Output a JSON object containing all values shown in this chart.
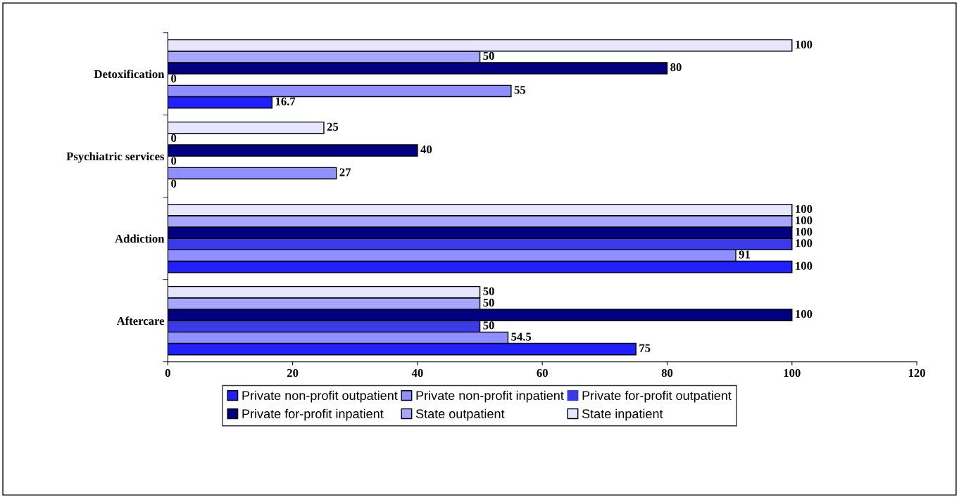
{
  "chart_data": {
    "type": "bar",
    "orientation": "horizontal",
    "categories": [
      "Detoxification",
      "Psychiatric services",
      "Addiction",
      "Aftercare"
    ],
    "series": [
      {
        "name": "Private non-profit outpatient",
        "color": "#1f1fff",
        "values": [
          16.7,
          0,
          100,
          75
        ]
      },
      {
        "name": "Private non-profit inpatient",
        "color": "#8f8fff",
        "values": [
          55,
          27,
          91,
          54.5
        ]
      },
      {
        "name": "Private for-profit outpatient",
        "color": "#3a3ae6",
        "values": [
          0,
          0,
          100,
          50
        ]
      },
      {
        "name": "Private for-profit inpatient",
        "color": "#000080",
        "values": [
          80,
          40,
          100,
          100
        ]
      },
      {
        "name": "State outpatient",
        "color": "#a6a6ff",
        "values": [
          50,
          0,
          100,
          50
        ]
      },
      {
        "name": "State inpatient",
        "color": "#e6e6ff",
        "values": [
          100,
          25,
          100,
          50
        ]
      }
    ],
    "xlim": [
      0,
      120
    ],
    "xticks": [
      0,
      20,
      40,
      60,
      80,
      100,
      120
    ],
    "data_labels": true,
    "grid": false,
    "legend": "bottom"
  }
}
